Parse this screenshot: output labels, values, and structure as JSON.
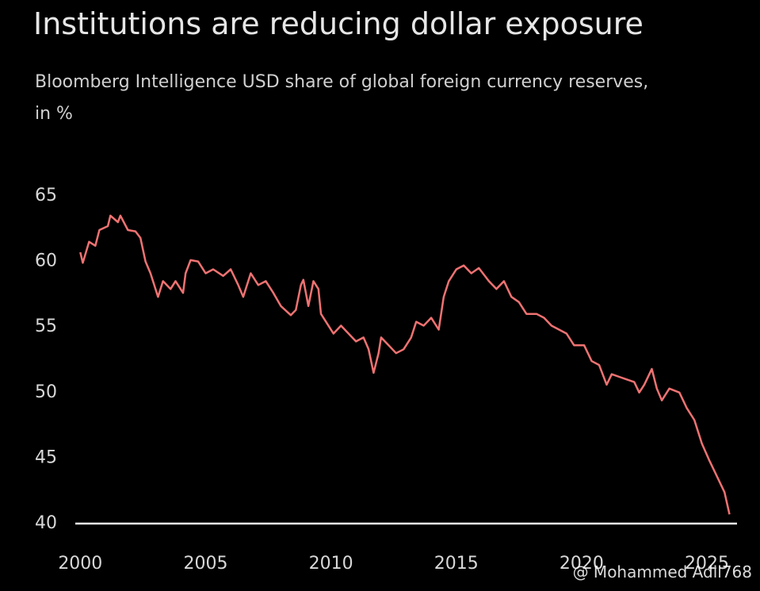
{
  "chart_data": {
    "type": "line",
    "title": "Institutions are reducing dollar exposure",
    "subtitle": "Bloomberg Intelligence USD share of global foreign currency reserves, in %",
    "x": [
      2000.0,
      2000.1,
      2000.35,
      2000.6,
      2000.76,
      2001.1,
      2001.2,
      2001.5,
      2001.6,
      2001.9,
      2002.2,
      2002.4,
      2002.6,
      2002.8,
      2003.1,
      2003.3,
      2003.6,
      2003.8,
      2004.1,
      2004.2,
      2004.4,
      2004.7,
      2005.0,
      2005.3,
      2005.7,
      2006.0,
      2006.3,
      2006.5,
      2006.8,
      2007.1,
      2007.4,
      2007.7,
      2008.0,
      2008.4,
      2008.6,
      2008.8,
      2008.9,
      2009.1,
      2009.3,
      2009.5,
      2009.6,
      2009.8,
      2010.1,
      2010.4,
      2010.7,
      2011.0,
      2011.3,
      2011.5,
      2011.7,
      2011.9,
      2012.0,
      2012.3,
      2012.6,
      2012.9,
      2013.2,
      2013.4,
      2013.7,
      2014.0,
      2014.3,
      2014.5,
      2014.7,
      2015.0,
      2015.3,
      2015.6,
      2015.9,
      2016.3,
      2016.6,
      2016.9,
      2017.2,
      2017.5,
      2017.8,
      2018.2,
      2018.5,
      2018.8,
      2019.1,
      2019.4,
      2019.7,
      2020.1,
      2020.4,
      2020.7,
      2021.0,
      2021.2,
      2021.5,
      2021.8,
      2022.1,
      2022.3,
      2022.5,
      2022.8,
      2023.0,
      2023.2,
      2023.5,
      2023.9,
      2024.2,
      2024.5,
      2024.8,
      2025.1,
      2025.4,
      2025.7,
      2025.9
    ],
    "series": [
      {
        "name": "USD share",
        "color": "#f07272",
        "values": [
          60.7,
          59.9,
          61.5,
          61.2,
          62.4,
          62.7,
          63.5,
          63.0,
          63.5,
          62.4,
          62.3,
          61.8,
          60.0,
          59.1,
          57.3,
          58.5,
          57.9,
          58.5,
          57.6,
          59.1,
          60.1,
          60.0,
          59.1,
          59.4,
          58.9,
          59.4,
          58.2,
          57.3,
          59.1,
          58.2,
          58.5,
          57.6,
          56.6,
          55.9,
          56.3,
          58.2,
          58.6,
          56.6,
          58.5,
          57.9,
          56.0,
          55.4,
          54.5,
          55.1,
          54.5,
          53.9,
          54.2,
          53.3,
          51.5,
          53.0,
          54.2,
          53.6,
          53.0,
          53.3,
          54.2,
          55.4,
          55.1,
          55.7,
          54.8,
          57.3,
          58.5,
          59.4,
          59.7,
          59.1,
          59.5,
          58.5,
          57.9,
          58.5,
          57.3,
          56.9,
          56.0,
          56.0,
          55.7,
          55.1,
          54.8,
          54.5,
          53.6,
          53.6,
          52.4,
          52.1,
          50.6,
          51.4,
          51.2,
          51.0,
          50.8,
          50.0,
          50.6,
          51.8,
          50.3,
          49.4,
          50.3,
          50.0,
          48.8,
          47.9,
          46.1,
          44.8,
          43.6,
          42.4,
          40.7
        ]
      }
    ],
    "xlim": [
      1999.8,
      2026.2
    ],
    "xticks": [
      2000,
      2005,
      2010,
      2015,
      2020,
      2025
    ],
    "ylim": [
      40,
      65
    ],
    "yticks": [
      40,
      45,
      50,
      55,
      60,
      65
    ]
  },
  "watermark": "@ Mohammed Adil768"
}
